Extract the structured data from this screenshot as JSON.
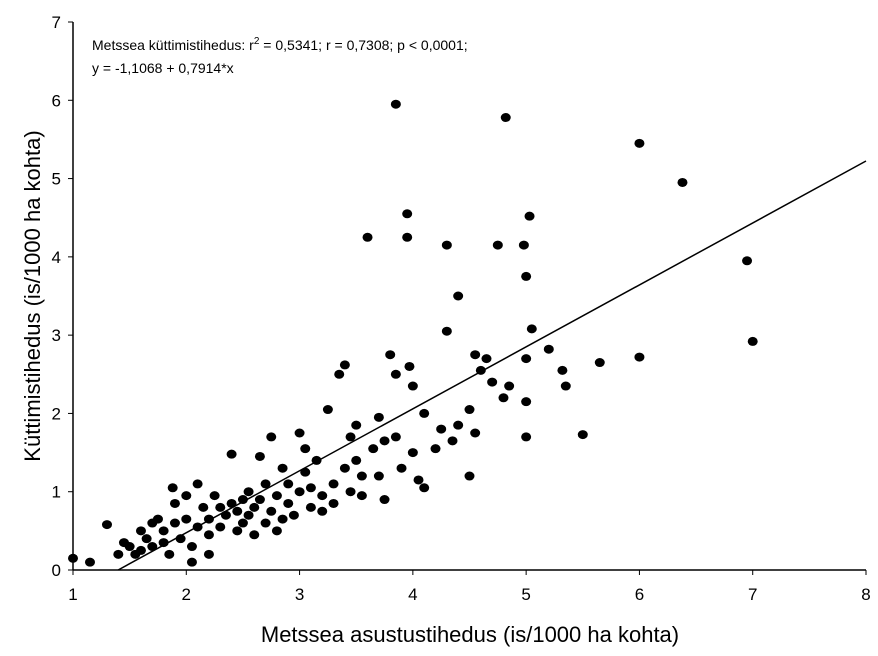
{
  "chart_data": {
    "type": "scatter",
    "xlabel": "Metssea asustustihedus (is/1000 ha kohta)",
    "ylabel": "Küttimistihedus (is/1000 ha kohta)",
    "annotations": [
      "Metssea küttimistihedus:  r",
      "2",
      " = 0,5341;  r = 0,7308; p < 0,0001;",
      "y = -1,1068 + 0,7914*x"
    ],
    "xlim": [
      1,
      8
    ],
    "ylim": [
      0,
      7
    ],
    "xticks": [
      1,
      2,
      3,
      4,
      5,
      6,
      7,
      8
    ],
    "yticks": [
      0,
      1,
      2,
      3,
      4,
      5,
      6,
      7
    ],
    "grid": false,
    "color": "#000000",
    "fit_line": {
      "x": [
        1.3985,
        8
      ],
      "y": [
        0,
        5.2244
      ],
      "color": "#000000"
    },
    "x": [
      1.0,
      1.15,
      1.3,
      1.4,
      1.45,
      1.5,
      1.55,
      1.6,
      1.6,
      1.65,
      1.7,
      1.7,
      1.75,
      1.8,
      1.8,
      1.85,
      1.88,
      1.9,
      1.9,
      1.95,
      2.0,
      2.0,
      2.05,
      2.05,
      2.1,
      2.1,
      2.15,
      2.2,
      2.2,
      2.2,
      2.25,
      2.3,
      2.3,
      2.35,
      2.4,
      2.4,
      2.45,
      2.45,
      2.5,
      2.5,
      2.55,
      2.55,
      2.6,
      2.6,
      2.65,
      2.65,
      2.7,
      2.7,
      2.75,
      2.75,
      2.8,
      2.8,
      2.85,
      2.85,
      2.9,
      2.9,
      2.95,
      3.0,
      3.0,
      3.05,
      3.05,
      3.1,
      3.1,
      3.15,
      3.2,
      3.2,
      3.25,
      3.3,
      3.3,
      3.35,
      3.4,
      3.4,
      3.45,
      3.45,
      3.5,
      3.5,
      3.55,
      3.55,
      3.6,
      3.65,
      3.7,
      3.7,
      3.75,
      3.75,
      3.8,
      3.85,
      3.85,
      3.85,
      3.9,
      3.95,
      3.95,
      3.97,
      4.0,
      4.0,
      4.05,
      4.1,
      4.1,
      4.2,
      4.25,
      4.3,
      4.3,
      4.35,
      4.4,
      4.4,
      4.5,
      4.5,
      4.55,
      4.55,
      4.6,
      4.65,
      4.7,
      4.75,
      4.8,
      4.82,
      4.85,
      4.98,
      5.0,
      5.0,
      5.0,
      5.0,
      5.03,
      5.05,
      5.2,
      5.32,
      5.35,
      5.5,
      5.65,
      6.0,
      6.0,
      6.38,
      6.95,
      7.0
    ],
    "y": [
      0.15,
      0.1,
      0.58,
      0.2,
      0.35,
      0.3,
      0.2,
      0.5,
      0.25,
      0.4,
      0.6,
      0.3,
      0.65,
      0.5,
      0.35,
      0.2,
      1.05,
      0.85,
      0.6,
      0.4,
      0.65,
      0.95,
      0.3,
      0.1,
      1.1,
      0.55,
      0.8,
      0.45,
      0.65,
      0.2,
      0.95,
      0.55,
      0.8,
      0.7,
      1.48,
      0.85,
      0.5,
      0.75,
      0.6,
      0.9,
      0.7,
      1.0,
      0.45,
      0.8,
      1.45,
      0.9,
      0.6,
      1.1,
      0.75,
      1.7,
      0.5,
      0.95,
      1.3,
      0.65,
      0.85,
      1.1,
      0.7,
      1.75,
      1.0,
      1.55,
      1.25,
      0.8,
      1.05,
      1.4,
      0.75,
      0.95,
      2.05,
      1.1,
      0.85,
      2.5,
      2.62,
      1.3,
      1.7,
      1.0,
      1.85,
      1.4,
      1.2,
      0.95,
      4.25,
      1.55,
      1.95,
      1.2,
      1.65,
      0.9,
      2.75,
      5.95,
      2.5,
      1.7,
      1.3,
      4.55,
      4.25,
      2.6,
      2.35,
      1.5,
      1.15,
      2.0,
      1.05,
      1.55,
      1.8,
      4.15,
      3.05,
      1.65,
      3.5,
      1.85,
      2.05,
      1.2,
      2.75,
      1.75,
      2.55,
      2.7,
      2.4,
      4.15,
      2.2,
      5.78,
      2.35,
      4.15,
      3.75,
      2.7,
      2.15,
      1.7,
      4.52,
      3.08,
      2.82,
      2.55,
      2.35,
      1.73,
      2.65,
      5.45,
      2.72,
      4.95,
      3.95,
      2.92
    ]
  }
}
